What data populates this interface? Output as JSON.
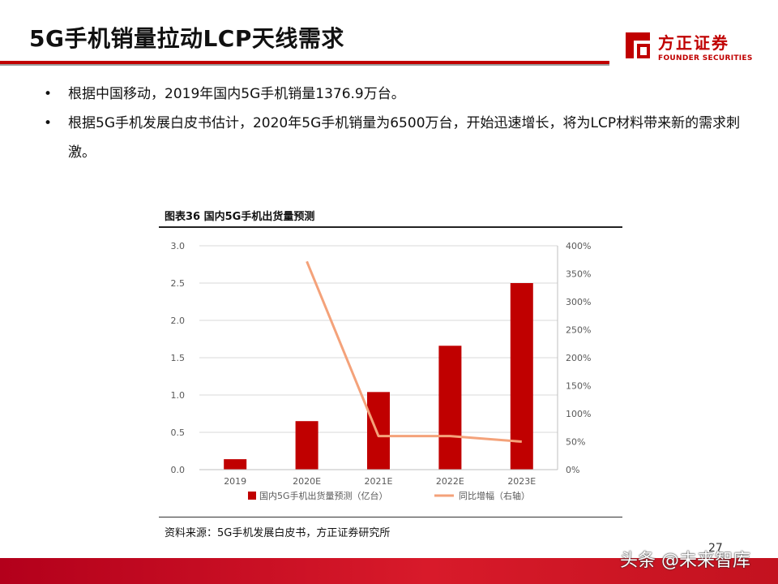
{
  "slide": {
    "title": "5G手机销量拉动LCP天线需求",
    "page_number": "27",
    "bullets": [
      "根据中国移动，2019年国内5G手机销量1376.9万台。",
      "根据5G手机发展白皮书估计，2020年5G手机销量为6500万台，开始迅速增长，将为LCP材料带来新的需求刺激。"
    ]
  },
  "logo": {
    "name_cn": "方正证券",
    "name_en": "FOUNDER SECURITIES",
    "color": "#c00000"
  },
  "chart_title": "图表36 国内5G手机出货量预测",
  "source": "资料来源：5G手机发展白皮书，方正证券研究所",
  "watermark": "头条 @未来智库",
  "colors": {
    "accent": "#c00000",
    "bar": "#c00000",
    "line": "#f4a27a"
  },
  "chart_data": {
    "type": "bar",
    "categories": [
      "2019",
      "2020E",
      "2021E",
      "2022E",
      "2023E"
    ],
    "series": [
      {
        "name": "国内5G手机出货量预测（亿台）",
        "type": "bar",
        "axis": "left",
        "values": [
          0.14,
          0.65,
          1.04,
          1.66,
          2.5
        ]
      },
      {
        "name": "同比增幅（右轴）",
        "type": "line",
        "axis": "right",
        "values": [
          null,
          372,
          60,
          60,
          50
        ]
      }
    ],
    "y_left": {
      "ylim": [
        0,
        3
      ],
      "ticks": [
        "0.0",
        "0.5",
        "1.0",
        "1.5",
        "2.0",
        "2.5",
        "3.0"
      ]
    },
    "y_right": {
      "ylim": [
        0,
        400
      ],
      "ticks": [
        "0%",
        "50%",
        "100%",
        "150%",
        "200%",
        "250%",
        "300%",
        "350%",
        "400%"
      ]
    },
    "grid": true,
    "legend": "bottom"
  }
}
